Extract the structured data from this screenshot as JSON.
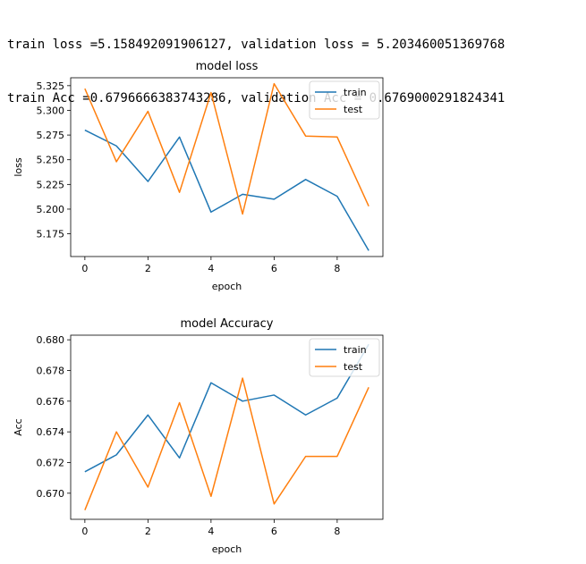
{
  "log_lines": [
    "train loss =5.158492091906127, validation loss = 5.203460051369768",
    "train Acc =0.6796666383743286, validation Acc = 0.6769000291824341"
  ],
  "colors": {
    "train": "#1f77b4",
    "test": "#ff7f0e"
  },
  "chart_data": [
    {
      "type": "line",
      "title": "model loss",
      "xlabel": "epoch",
      "ylabel": "loss",
      "x": [
        0,
        1,
        2,
        3,
        4,
        5,
        6,
        7,
        8,
        9
      ],
      "xlim": [
        -0.45,
        9.45
      ],
      "ylim": [
        5.152,
        5.333
      ],
      "xticks": [
        0,
        2,
        4,
        6,
        8
      ],
      "yticks": [
        5.175,
        5.2,
        5.225,
        5.25,
        5.275,
        5.3,
        5.325
      ],
      "ytick_labels": [
        "5.175",
        "5.200",
        "5.225",
        "5.250",
        "5.275",
        "5.300",
        "5.325"
      ],
      "legend": "upper right",
      "series": [
        {
          "name": "train",
          "values": [
            5.28,
            5.264,
            5.228,
            5.273,
            5.197,
            5.215,
            5.21,
            5.23,
            5.213,
            5.158
          ]
        },
        {
          "name": "test",
          "values": [
            5.322,
            5.248,
            5.299,
            5.217,
            5.318,
            5.195,
            5.327,
            5.274,
            5.273,
            5.203
          ]
        }
      ]
    },
    {
      "type": "line",
      "title": "model Accuracy",
      "xlabel": "epoch",
      "ylabel": "Acc",
      "x": [
        0,
        1,
        2,
        3,
        4,
        5,
        6,
        7,
        8,
        9
      ],
      "xlim": [
        -0.45,
        9.45
      ],
      "ylim": [
        0.6683,
        0.6803
      ],
      "xticks": [
        0,
        2,
        4,
        6,
        8
      ],
      "yticks": [
        0.67,
        0.672,
        0.674,
        0.676,
        0.678,
        0.68
      ],
      "ytick_labels": [
        "0.670",
        "0.672",
        "0.674",
        "0.676",
        "0.678",
        "0.680"
      ],
      "legend": "upper right",
      "series": [
        {
          "name": "train",
          "values": [
            0.6714,
            0.6725,
            0.6751,
            0.6723,
            0.6772,
            0.676,
            0.6764,
            0.6751,
            0.6762,
            0.6797
          ]
        },
        {
          "name": "test",
          "values": [
            0.6689,
            0.674,
            0.6704,
            0.6759,
            0.6698,
            0.6775,
            0.6693,
            0.6724,
            0.6724,
            0.6769
          ]
        }
      ]
    }
  ]
}
